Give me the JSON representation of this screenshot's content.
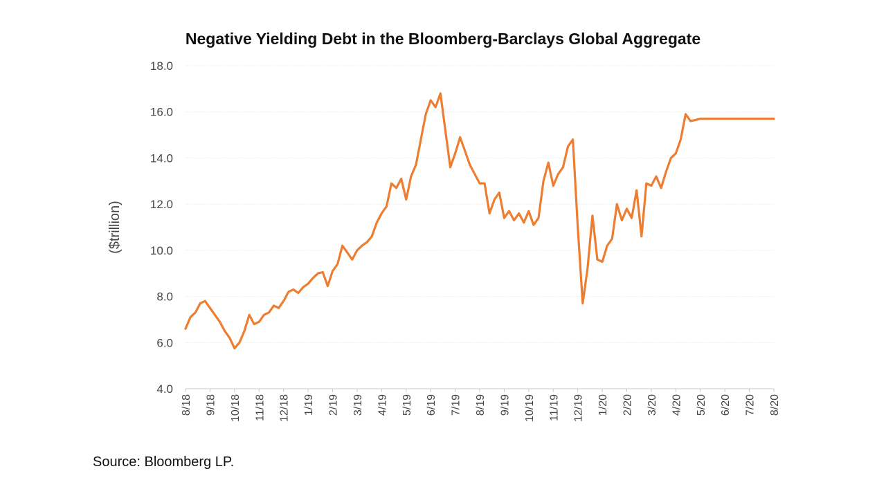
{
  "chart_data": {
    "type": "line",
    "title": "Negative Yielding Debt in the Bloomberg-Barclays Global Aggregate",
    "ylabel": "($trillion)",
    "xlabel": "",
    "ylim": [
      4.0,
      18.0
    ],
    "yticks": [
      "4.0",
      "6.0",
      "8.0",
      "10.0",
      "12.0",
      "14.0",
      "16.0",
      "18.0"
    ],
    "ytick_values": [
      4,
      6,
      8,
      10,
      12,
      14,
      16,
      18
    ],
    "xticks": [
      "8/18",
      "9/18",
      "10/18",
      "11/18",
      "12/18",
      "1/19",
      "2/19",
      "3/19",
      "4/19",
      "5/19",
      "6/19",
      "7/19",
      "8/19",
      "9/19",
      "10/19",
      "11/19",
      "12/19",
      "1/20",
      "2/20",
      "3/20",
      "4/20",
      "5/20",
      "6/20",
      "7/20",
      "8/20"
    ],
    "grid": true,
    "line_color": "#ED7D31",
    "series": [
      {
        "name": "Negative Yielding Debt",
        "x": [
          0,
          0.2,
          0.4,
          0.6,
          0.8,
          1.0,
          1.2,
          1.4,
          1.6,
          1.8,
          2.0,
          2.2,
          2.4,
          2.6,
          2.8,
          3.0,
          3.2,
          3.4,
          3.6,
          3.8,
          4.0,
          4.2,
          4.4,
          4.6,
          4.8,
          5.0,
          5.2,
          5.4,
          5.6,
          5.8,
          6.0,
          6.2,
          6.4,
          6.6,
          6.8,
          7.0,
          7.2,
          7.4,
          7.6,
          7.8,
          8.0,
          8.2,
          8.4,
          8.6,
          8.8,
          9.0,
          9.2,
          9.4,
          9.6,
          9.8,
          10.0,
          10.2,
          10.4,
          10.6,
          10.8,
          11.0,
          11.2,
          11.4,
          11.6,
          11.8,
          12.0,
          12.2,
          12.4,
          12.6,
          12.8,
          13.0,
          13.2,
          13.4,
          13.6,
          13.8,
          14.0,
          14.2,
          14.4,
          14.6,
          14.8,
          15.0,
          15.2,
          15.4,
          15.6,
          15.8,
          16.0,
          16.2,
          16.4,
          16.6,
          16.8,
          17.0,
          17.2,
          17.4,
          17.6,
          17.8,
          18.0,
          18.2,
          18.4,
          18.6,
          18.8,
          19.0,
          19.2,
          19.4,
          19.6,
          19.8,
          20.0,
          20.2,
          20.4,
          20.6,
          20.8,
          21.0,
          21.2,
          21.4,
          21.6,
          21.8,
          22.0,
          22.2,
          22.4,
          22.6,
          22.8,
          23.0,
          23.2,
          23.4,
          23.6,
          23.8,
          24.0
        ],
        "values": [
          6.6,
          7.1,
          7.3,
          7.7,
          7.8,
          7.5,
          7.2,
          6.9,
          6.5,
          6.2,
          5.75,
          6.0,
          6.5,
          7.2,
          6.8,
          6.9,
          7.2,
          7.3,
          7.6,
          7.5,
          7.8,
          8.2,
          8.3,
          8.15,
          8.4,
          8.55,
          8.8,
          9.0,
          9.05,
          8.45,
          9.1,
          9.4,
          10.2,
          9.9,
          9.6,
          10.0,
          10.2,
          10.35,
          10.6,
          11.2,
          11.6,
          11.9,
          12.9,
          12.7,
          13.1,
          12.2,
          13.2,
          13.7,
          14.8,
          15.9,
          16.5,
          16.2,
          16.8,
          15.2,
          13.6,
          14.2,
          14.9,
          14.3,
          13.7,
          13.3,
          12.9,
          12.9,
          11.6,
          12.2,
          12.5,
          11.4,
          11.7,
          11.3,
          11.6,
          11.2,
          11.7,
          11.1,
          11.4,
          13.0,
          13.8,
          12.8,
          13.3,
          13.6,
          14.5,
          14.8,
          11.0,
          7.7,
          9.2,
          11.5,
          9.6,
          9.5,
          10.2,
          10.5,
          12.0,
          11.3,
          11.8,
          11.4,
          12.6,
          10.6,
          12.9,
          12.8,
          13.2,
          12.7,
          13.4,
          14.0,
          14.2,
          14.8,
          15.9,
          15.6,
          15.65,
          15.7,
          15.7,
          15.7,
          15.7,
          15.7,
          15.7,
          15.7,
          15.7,
          15.7,
          15.7,
          15.7,
          15.7,
          15.7,
          15.7,
          15.7,
          15.7
        ]
      }
    ]
  },
  "footer": {
    "source": "Source: Bloomberg LP."
  }
}
